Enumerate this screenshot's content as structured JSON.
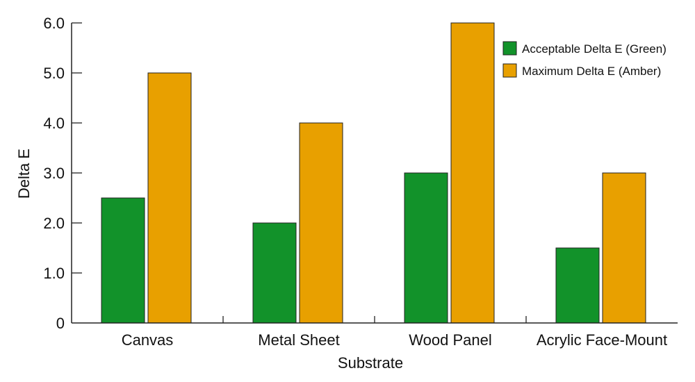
{
  "chart_data": {
    "type": "bar",
    "title": "",
    "xlabel": "Substrate",
    "ylabel": "Delta E",
    "ylim": [
      0,
      6
    ],
    "yticks": [
      "0",
      "1.0",
      "2.0",
      "3.0",
      "4.0",
      "5.0",
      "6.0"
    ],
    "categories": [
      "Canvas",
      "Metal Sheet",
      "Wood Panel",
      "Acrylic Face-Mount"
    ],
    "series": [
      {
        "name": "Acceptable Delta E (Green)",
        "color": "#12922a",
        "values": [
          2.5,
          2.0,
          3.0,
          1.5
        ]
      },
      {
        "name": "Maximum Delta E (Amber)",
        "color": "#e8a000",
        "values": [
          5.0,
          4.0,
          6.0,
          3.0
        ]
      }
    ],
    "grid": false,
    "legend_position": "top-right"
  }
}
